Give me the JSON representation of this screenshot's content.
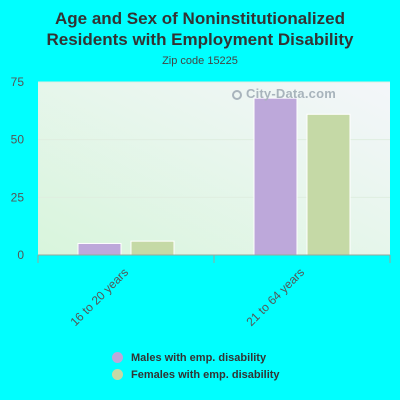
{
  "title_line1": "Age and Sex of Noninstitutionalized",
  "title_line2": "Residents with Employment Disability",
  "subtitle": "Zip code 15225",
  "watermark": "City-Data.com",
  "colors": {
    "males": "#bda8da",
    "females": "#c5d9a6",
    "background": "#00ffff"
  },
  "chart_data": {
    "type": "bar",
    "categories": [
      "16 to 20 years",
      "21 to 64 years"
    ],
    "series": [
      {
        "name": "Males with emp. disability",
        "values": [
          5,
          68
        ]
      },
      {
        "name": "Females with emp. disability",
        "values": [
          6,
          61
        ]
      }
    ],
    "yticks": [
      0,
      25,
      50,
      75
    ],
    "ylim": [
      0,
      75
    ],
    "grid": true,
    "legend_position": "bottom"
  }
}
